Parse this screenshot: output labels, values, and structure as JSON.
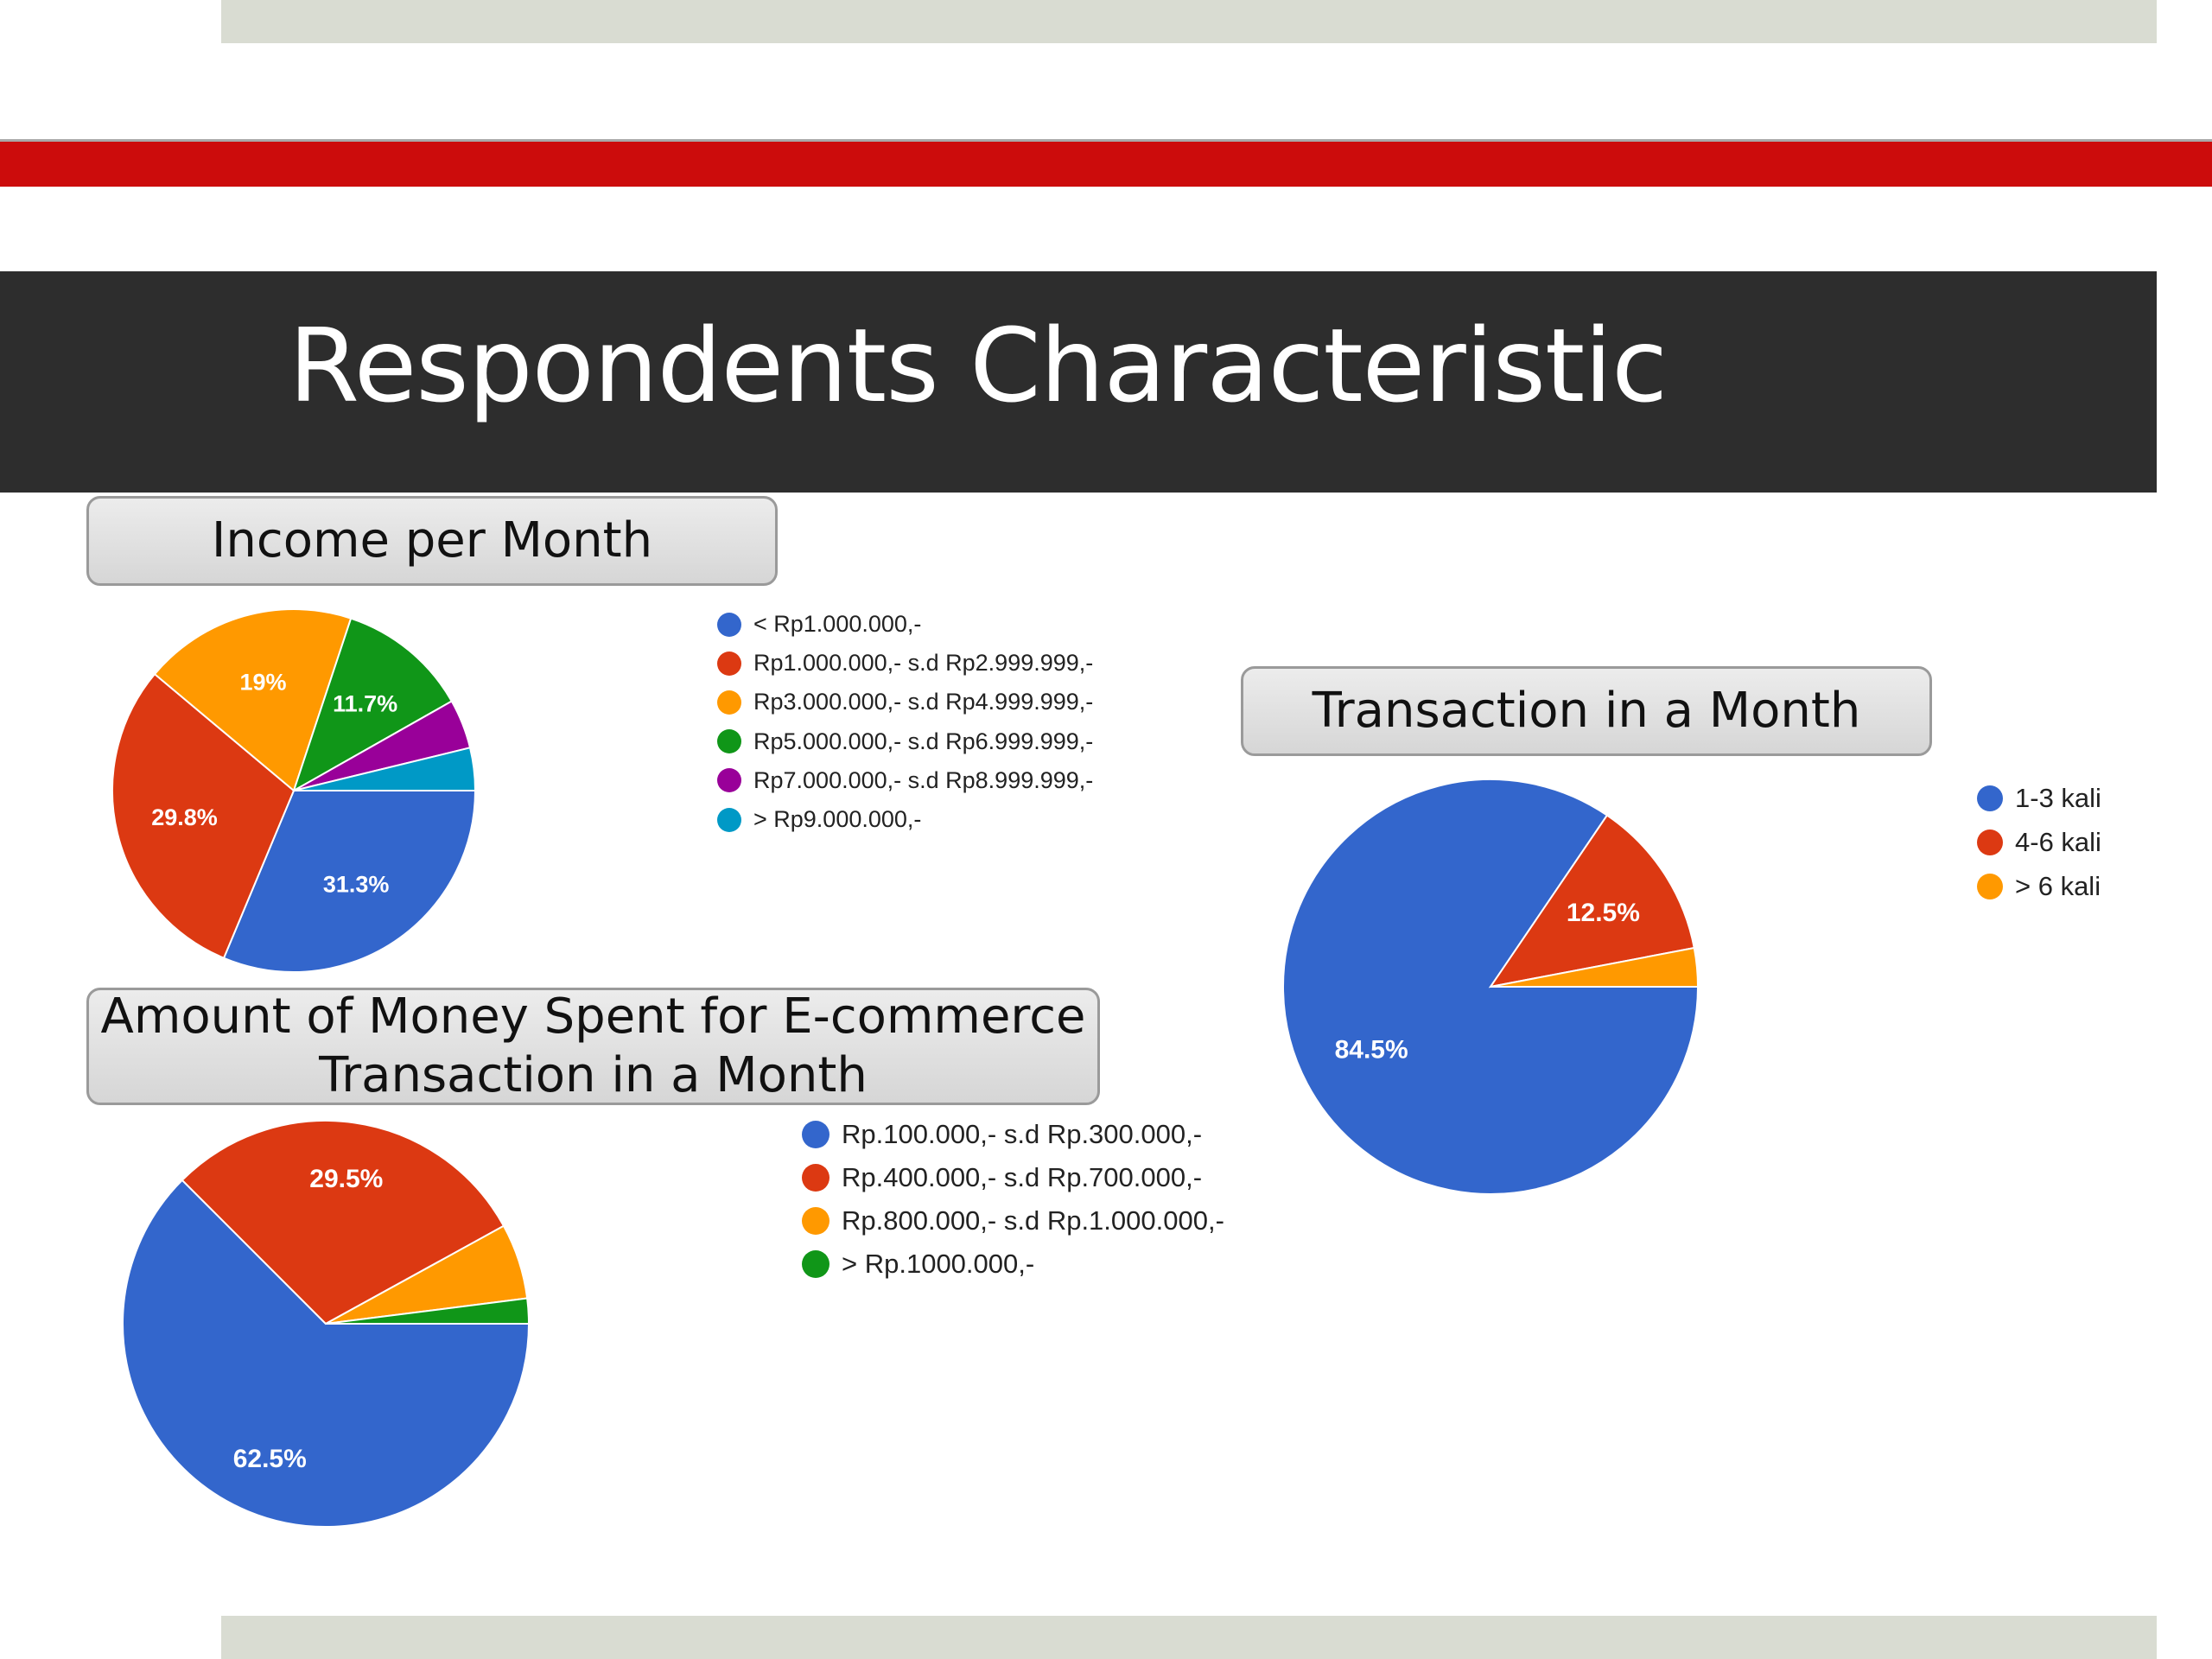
{
  "slide": {
    "title": "Respondents Characteristic"
  },
  "colors": {
    "band": "#d9dcd2",
    "rule": "#cc0c0c",
    "title_bar": "#2d2d2d"
  },
  "chart_data": [
    {
      "id": "income",
      "type": "pie",
      "title": "Income per Month",
      "legend_position": "right",
      "slices": [
        {
          "label": "< Rp1.000.000,-",
          "value": 31.3,
          "color": "#3366cc",
          "data_label": "31.3%"
        },
        {
          "label": "Rp1.000.000,- s.d Rp2.999.999,-",
          "value": 29.8,
          "color": "#dc3912",
          "data_label": "29.8%"
        },
        {
          "label": "Rp3.000.000,- s.d Rp4.999.999,-",
          "value": 19,
          "color": "#ff9900",
          "data_label": "19%"
        },
        {
          "label": "Rp5.000.000,- s.d Rp6.999.999,-",
          "value": 11.7,
          "color": "#109618",
          "data_label": "11.7%"
        },
        {
          "label": "Rp7.000.000,- s.d Rp8.999.999,-",
          "value": 4.4,
          "color": "#990099",
          "data_label": ""
        },
        {
          "label": "> Rp9.000.000,-",
          "value": 3.8,
          "color": "#0099c6",
          "data_label": ""
        }
      ]
    },
    {
      "id": "trans",
      "type": "pie",
      "title": "Transaction in a Month",
      "legend_position": "right",
      "slices": [
        {
          "label": "1-3 kali",
          "value": 84.5,
          "color": "#3366cc",
          "data_label": "84.5%"
        },
        {
          "label": "4-6 kali",
          "value": 12.5,
          "color": "#dc3912",
          "data_label": "12.5%"
        },
        {
          "label": "> 6 kali",
          "value": 3.0,
          "color": "#ff9900",
          "data_label": ""
        }
      ]
    },
    {
      "id": "spent",
      "type": "pie",
      "title": "Amount of Money Spent for E-commerce Transaction in a Month",
      "legend_position": "right",
      "slices": [
        {
          "label": "Rp.100.000,- s.d Rp.300.000,-",
          "value": 62.5,
          "color": "#3366cc",
          "data_label": "62.5%"
        },
        {
          "label": "Rp.400.000,- s.d Rp.700.000,-",
          "value": 29.5,
          "color": "#dc3912",
          "data_label": "29.5%"
        },
        {
          "label": "Rp.800.000,- s.d Rp.1.000.000,-",
          "value": 6.0,
          "color": "#ff9900",
          "data_label": ""
        },
        {
          "label": "> Rp.1000.000,-",
          "value": 2.0,
          "color": "#109618",
          "data_label": ""
        }
      ]
    }
  ]
}
